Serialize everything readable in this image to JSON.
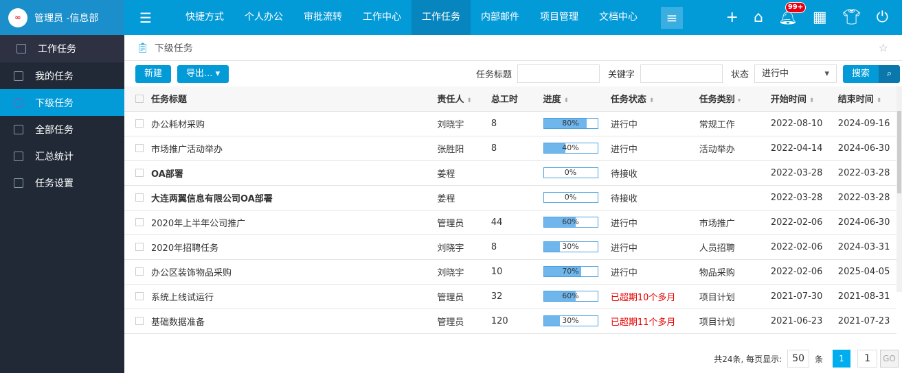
{
  "brand": {
    "user": "管理员 -信息部"
  },
  "sidebar": {
    "header": "工作任务",
    "items": [
      {
        "label": "我的任务"
      },
      {
        "label": "下级任务",
        "active": true
      },
      {
        "label": "全部任务"
      },
      {
        "label": "汇总统计"
      },
      {
        "label": "任务设置"
      }
    ]
  },
  "nav": [
    "快捷方式",
    "个人办公",
    "审批流转",
    "工作中心",
    "工作任务",
    "内部邮件",
    "项目管理",
    "文档中心"
  ],
  "nav_active": "工作任务",
  "notifications": "99+",
  "breadcrumb": "下级任务",
  "toolbar": {
    "new": "新建",
    "export": "导出...",
    "title_label": "任务标题",
    "title_value": "",
    "keyword_label": "关键字",
    "keyword_value": "",
    "status_label": "状态",
    "status_value": "进行中",
    "search": "搜索"
  },
  "columns": [
    "任务标题",
    "责任人",
    "总工时",
    "进度",
    "任务状态",
    "任务类别",
    "开始时间",
    "结束时间"
  ],
  "rows": [
    {
      "title": "办公耗材采购",
      "owner": "刘晓宇",
      "hours": "8",
      "progress": 80,
      "progress_label": "80%",
      "status": "进行中",
      "category": "常规工作",
      "start": "2022-08-10",
      "end": "2024-09-16"
    },
    {
      "title": "市场推广活动举办",
      "owner": "张胜阳",
      "hours": "8",
      "progress": 40,
      "progress_label": "40%",
      "status": "进行中",
      "category": "活动举办",
      "start": "2022-04-14",
      "end": "2024-06-30"
    },
    {
      "title": "OA部署",
      "bold": true,
      "owner": "姜程",
      "hours": "",
      "progress": 0,
      "progress_label": "0%",
      "status": "待接收",
      "category": "",
      "start": "2022-03-28",
      "end": "2022-03-28"
    },
    {
      "title": "大连两翼信息有限公司OA部署",
      "bold": true,
      "owner": "姜程",
      "hours": "",
      "progress": 0,
      "progress_label": "0%",
      "status": "待接收",
      "category": "",
      "start": "2022-03-28",
      "end": "2022-03-28"
    },
    {
      "title": "2020年上半年公司推广",
      "owner": "管理员",
      "hours": "44",
      "progress": 60,
      "progress_label": "60%",
      "status": "进行中",
      "category": "市场推广",
      "start": "2022-02-06",
      "end": "2024-06-30"
    },
    {
      "title": "2020年招聘任务",
      "owner": "刘晓宇",
      "hours": "8",
      "progress": 30,
      "progress_label": "30%",
      "status": "进行中",
      "category": "人员招聘",
      "start": "2022-02-06",
      "end": "2024-03-31"
    },
    {
      "title": "办公区装饰物品采购",
      "owner": "刘晓宇",
      "hours": "10",
      "progress": 70,
      "progress_label": "70%",
      "status": "进行中",
      "category": "物品采购",
      "start": "2022-02-06",
      "end": "2025-04-05"
    },
    {
      "title": "系统上线试运行",
      "owner": "管理员",
      "hours": "32",
      "progress": 60,
      "progress_label": "60%",
      "status": "已超期10个多月",
      "overdue": true,
      "category": "项目计划",
      "start": "2021-07-30",
      "end": "2021-08-31"
    },
    {
      "title": "基础数据准备",
      "owner": "管理员",
      "hours": "120",
      "progress": 30,
      "progress_label": "30%",
      "status": "已超期11个多月",
      "overdue": true,
      "category": "项目计划",
      "start": "2021-06-23",
      "end": "2021-07-23"
    }
  ],
  "pager": {
    "summary": "共24条, 每页显示:",
    "page_size": "50",
    "unit": "条",
    "current": "1",
    "goto": "1",
    "go": "GO"
  }
}
